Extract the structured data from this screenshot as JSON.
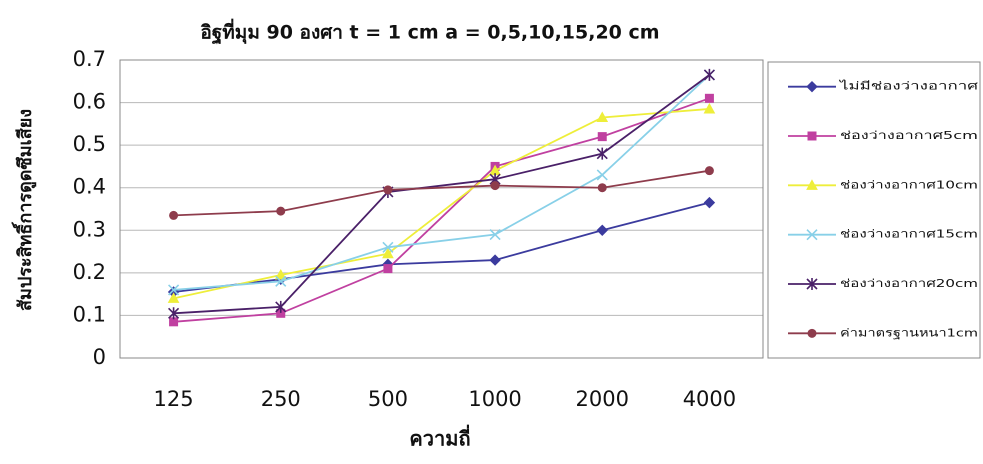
{
  "chart_data": {
    "type": "line",
    "title": "อิฐที่มุม 90 องศา  t = 1 cm  a = 0,5,10,15,20 cm",
    "x_label": "ความถี่",
    "y_label": "สัมประสิทธิ์การดูดซึมเสียง",
    "categories": [
      "125",
      "250",
      "500",
      "1000",
      "2000",
      "4000"
    ],
    "ylim": [
      0,
      0.7
    ],
    "yticks": [
      0,
      0.1,
      0.2,
      0.3,
      0.4,
      0.5,
      0.6,
      0.7
    ],
    "grid": true,
    "legend": "right",
    "series": [
      {
        "name": "ไม่มีช่องว่างอากาศ",
        "color": "#3b3b9e",
        "marker": "diamond",
        "values": [
          0.155,
          0.185,
          0.22,
          0.23,
          0.3,
          0.365
        ]
      },
      {
        "name": "ช่องว่างอากาศ5cm",
        "color": "#c040a0",
        "marker": "square",
        "values": [
          0.085,
          0.105,
          0.21,
          0.45,
          0.52,
          0.61
        ]
      },
      {
        "name": "ช่องว่างอากาศ10cm",
        "color": "#eeee3a",
        "marker": "triangle",
        "values": [
          0.14,
          0.195,
          0.245,
          0.44,
          0.565,
          0.585
        ]
      },
      {
        "name": "ช่องว่างอากาศ15cm",
        "color": "#88d0e8",
        "marker": "x",
        "values": [
          0.16,
          0.18,
          0.26,
          0.29,
          0.43,
          0.665
        ]
      },
      {
        "name": "ช่องว่างอากาศ20cm",
        "color": "#4a2068",
        "marker": "star",
        "values": [
          0.105,
          0.12,
          0.39,
          0.42,
          0.48,
          0.665
        ]
      },
      {
        "name": "ค่ามาตรฐานหนา1cm",
        "color": "#8e3c4c",
        "marker": "circle",
        "values": [
          0.335,
          0.345,
          0.395,
          0.405,
          0.4,
          0.44
        ]
      }
    ]
  }
}
